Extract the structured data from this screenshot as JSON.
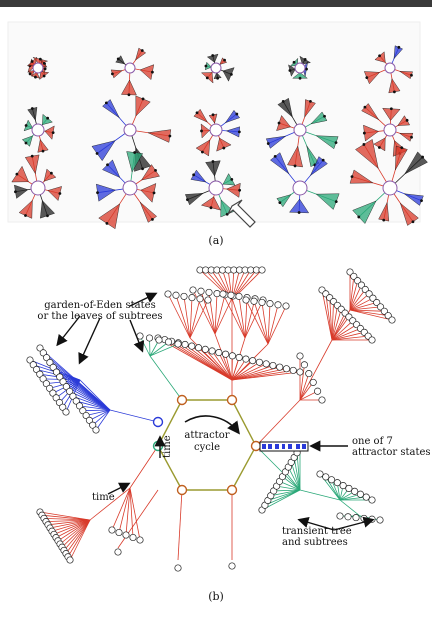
{
  "panel_a": {
    "caption": "(a)"
  },
  "panel_b": {
    "caption": "(b)",
    "annotations": {
      "garden_of_eden_line1": "garden-of-Eden states",
      "garden_of_eden_line2": "or the leaves of subtrees",
      "attractor_line1": "attractor",
      "attractor_line2": "cycle",
      "one_of_7_line1": "one of 7",
      "one_of_7_line2": "attractor states",
      "transient_line1": "transient tree",
      "transient_line2": "and subtrees",
      "time_left": "time",
      "time_vertical": "time"
    }
  },
  "colors": {
    "red": "#d83a2a",
    "blue": "#2a3ad8",
    "green": "#2aa878",
    "olive": "#9a9a30",
    "node_fill": "#ffffff",
    "node_stroke": "#222222",
    "topbar": "#3a3a3a"
  }
}
